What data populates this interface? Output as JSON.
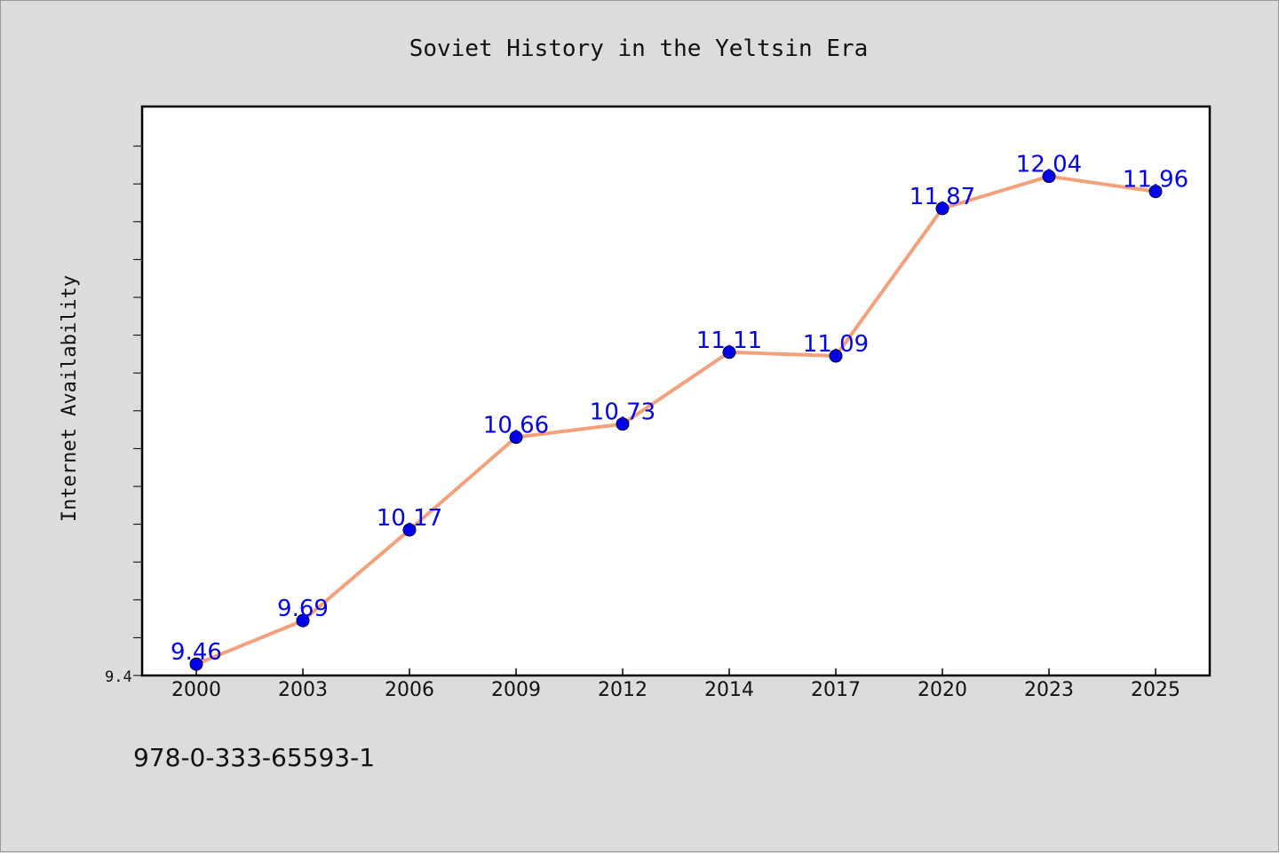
{
  "chart_data": {
    "type": "line",
    "title": "Soviet History in the Yeltsin Era",
    "xlabel": "",
    "ylabel": "Internet Availability",
    "categories": [
      "2000",
      "2003",
      "2006",
      "2009",
      "2012",
      "2014",
      "2017",
      "2020",
      "2023",
      "2025"
    ],
    "series": [
      {
        "values": [
          9.46,
          9.69,
          10.17,
          10.66,
          10.73,
          11.11,
          11.09,
          11.87,
          12.04,
          11.96
        ],
        "data_labels": [
          "9.46",
          "9.69",
          "10.17",
          "10.66",
          "10.73",
          "11.11",
          "11.09",
          "11.87",
          "12.04",
          "11.96"
        ],
        "line_color": "#f4a07a",
        "marker_color": "#0000ee",
        "label_color": "#0000ee"
      }
    ],
    "yticks": [
      "9.4"
    ],
    "ylim": [
      9.4,
      12.4
    ],
    "grid": false,
    "legend": "none"
  },
  "footer": {
    "isbn": "978-0-333-65593-1"
  }
}
